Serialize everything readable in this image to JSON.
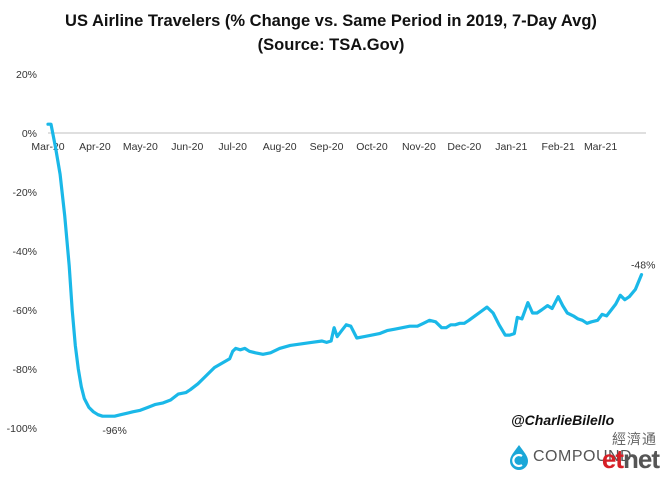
{
  "title": {
    "line1": "US Airline Travelers (% Change vs. Same Period in 2019, 7-Day Avg)",
    "line2": "(Source: TSA.Gov)"
  },
  "watermark": {
    "handle": "@CharlieBilello",
    "compound": "COMPOUND",
    "etnet_cn": "經濟通",
    "etnet_e": "e",
    "etnet_t": "t",
    "etnet_net": "net"
  },
  "colors": {
    "line": "#1ab8e8",
    "axis": "#bfbfbf",
    "compound_mark": "#1aa7d8",
    "etnet_red": "#d61f26"
  },
  "chart_data": {
    "type": "line",
    "title": "US Airline Travelers (% Change vs. Same Period in 2019, 7-Day Avg)",
    "subtitle": "(Source: TSA.Gov)",
    "x_tick_labels": [
      "Mar-20",
      "Apr-20",
      "May-20",
      "Jun-20",
      "Jul-20",
      "Aug-20",
      "Sep-20",
      "Oct-20",
      "Nov-20",
      "Dec-20",
      "Jan-21",
      "Feb-21",
      "Mar-21"
    ],
    "y_tick_labels": [
      "20%",
      "0%",
      "-20%",
      "-40%",
      "-60%",
      "-80%",
      "-100%"
    ],
    "ylim": [
      -100,
      20
    ],
    "xlim": [
      "2020-03-01",
      "2021-03-31"
    ],
    "grid": false,
    "series": [
      {
        "x": [
          "2020-03-01",
          "2020-03-03",
          "2020-03-06",
          "2020-03-09",
          "2020-03-12",
          "2020-03-15",
          "2020-03-17",
          "2020-03-19",
          "2020-03-21",
          "2020-03-23",
          "2020-03-25",
          "2020-03-28",
          "2020-03-31",
          "2020-04-03",
          "2020-04-06",
          "2020-04-10",
          "2020-04-14",
          "2020-04-18",
          "2020-04-22",
          "2020-04-26",
          "2020-05-01",
          "2020-05-06",
          "2020-05-11",
          "2020-05-16",
          "2020-05-21",
          "2020-05-26",
          "2020-05-31",
          "2020-06-03",
          "2020-06-08",
          "2020-06-14",
          "2020-06-19",
          "2020-06-24",
          "2020-06-29",
          "2020-07-01",
          "2020-07-03",
          "2020-07-06",
          "2020-07-09",
          "2020-07-12",
          "2020-07-16",
          "2020-07-21",
          "2020-07-26",
          "2020-08-01",
          "2020-08-08",
          "2020-08-15",
          "2020-08-22",
          "2020-08-29",
          "2020-09-01",
          "2020-09-04",
          "2020-09-06",
          "2020-09-08",
          "2020-09-11",
          "2020-09-14",
          "2020-09-17",
          "2020-09-21",
          "2020-09-26",
          "2020-10-01",
          "2020-10-06",
          "2020-10-11",
          "2020-10-16",
          "2020-10-21",
          "2020-10-26",
          "2020-10-31",
          "2020-11-04",
          "2020-11-08",
          "2020-11-12",
          "2020-11-16",
          "2020-11-19",
          "2020-11-22",
          "2020-11-25",
          "2020-11-28",
          "2020-12-01",
          "2020-12-04",
          "2020-12-08",
          "2020-12-12",
          "2020-12-16",
          "2020-12-20",
          "2020-12-24",
          "2020-12-28",
          "2020-12-31",
          "2021-01-03",
          "2021-01-05",
          "2021-01-08",
          "2021-01-12",
          "2021-01-15",
          "2021-01-18",
          "2021-01-21",
          "2021-01-25",
          "2021-01-28",
          "2021-02-01",
          "2021-02-04",
          "2021-02-07",
          "2021-02-11",
          "2021-02-14",
          "2021-02-17",
          "2021-02-20",
          "2021-02-23",
          "2021-02-27",
          "2021-03-02",
          "2021-03-05",
          "2021-03-08",
          "2021-03-11",
          "2021-03-14",
          "2021-03-17",
          "2021-03-20",
          "2021-03-24",
          "2021-03-28"
        ],
        "y": [
          3,
          3,
          -5,
          -14,
          -28,
          -45,
          -60,
          -72,
          -80,
          -86,
          -90,
          -93,
          -94.5,
          -95.5,
          -96,
          -96,
          -96,
          -95.5,
          -95,
          -94.5,
          -94,
          -93,
          -92,
          -91.5,
          -90.5,
          -88.5,
          -88,
          -87,
          -85,
          -82,
          -79.5,
          -78,
          -76.5,
          -74,
          -73,
          -73.5,
          -73,
          -74,
          -74.5,
          -75,
          -74.5,
          -73,
          -72,
          -71.5,
          -71,
          -70.5,
          -71,
          -70.5,
          -66,
          -69,
          -67,
          -65,
          -65.5,
          -69.5,
          -69,
          -68.5,
          -68,
          -67,
          -66.5,
          -66,
          -65.5,
          -65.5,
          -64.5,
          -63.5,
          -64,
          -66,
          -66,
          -65,
          -65,
          -64.5,
          -64.5,
          -63.5,
          -62,
          -60.5,
          -59,
          -61,
          -65,
          -68.5,
          -68.5,
          -68,
          -62.5,
          -63,
          -57.5,
          -61,
          -61,
          -60,
          -58.5,
          -59.5,
          -55.5,
          -58.5,
          -61,
          -62,
          -63,
          -63.5,
          -64.5,
          -64,
          -63.5,
          -61.5,
          -62,
          -60,
          -58,
          -55,
          -56.5,
          -55.5,
          -53,
          -48
        ]
      }
    ],
    "annotations": [
      {
        "x": "2020-04-14",
        "y": -96,
        "text": "-96%"
      },
      {
        "x": "2021-03-28",
        "y": -48,
        "text": "-48%"
      }
    ]
  }
}
